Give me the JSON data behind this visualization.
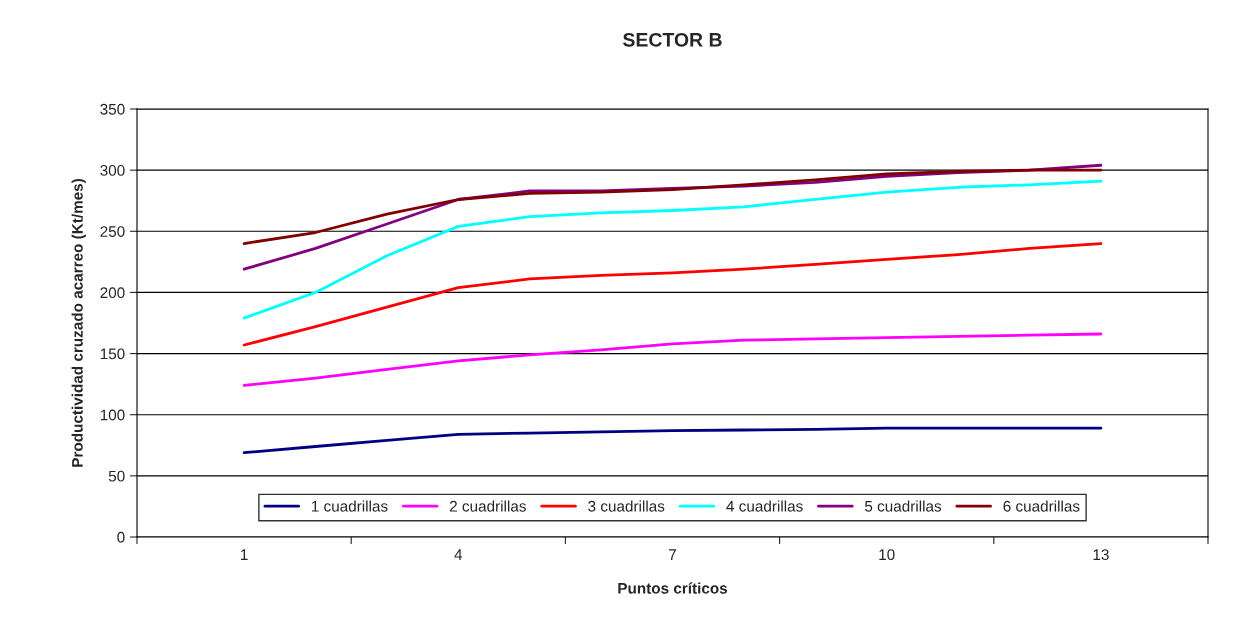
{
  "chart_data": {
    "type": "line",
    "title": "SECTOR B",
    "xlabel": "Puntos críticos",
    "ylabel": "Productividad cruzado acarreo (Kt/mes)",
    "x": [
      1,
      2,
      3,
      4,
      5,
      6,
      7,
      8,
      9,
      10,
      11,
      12,
      13
    ],
    "xlim": [
      -0.5,
      14.5
    ],
    "xticks": [
      {
        "value": -0.5,
        "label": null
      },
      1,
      {
        "value": 2.5,
        "label": null
      },
      4,
      {
        "value": 5.5,
        "label": null
      },
      7,
      {
        "value": 8.5,
        "label": null
      },
      10,
      {
        "value": 11.5,
        "label": null
      },
      13,
      {
        "value": 14.5,
        "label": null
      }
    ],
    "ylim": [
      0,
      350
    ],
    "yticks": [
      0,
      50,
      100,
      150,
      200,
      250,
      300,
      350
    ],
    "grid": "y",
    "legend": "bottom",
    "marker": "none",
    "line_style": "solid",
    "series": [
      {
        "name": "1 cuadrillas",
        "color": "#000080",
        "values": [
          69,
          74,
          79,
          84,
          85,
          86,
          87,
          87.5,
          88,
          89,
          89,
          89,
          89
        ]
      },
      {
        "name": "2 cuadrillas",
        "color": "#ff00ff",
        "values": [
          124,
          130,
          137,
          144,
          149,
          153,
          158,
          161,
          162,
          163,
          164,
          165,
          166
        ]
      },
      {
        "name": "3 cuadrillas",
        "color": "#ff0000",
        "values": [
          157,
          172,
          188,
          204,
          211,
          214,
          216,
          219,
          223,
          227,
          231,
          236,
          240
        ]
      },
      {
        "name": "4 cuadrillas",
        "color": "#00ffff",
        "values": [
          179,
          200,
          230,
          254,
          262,
          265,
          267,
          270,
          276,
          282,
          286,
          288,
          291
        ]
      },
      {
        "name": "5 cuadrillas",
        "color": "#800080",
        "values": [
          219,
          236,
          256,
          276,
          283,
          283,
          285,
          287,
          290,
          295,
          298,
          300,
          304
        ]
      },
      {
        "name": "6 cuadrillas",
        "color": "#800000",
        "values": [
          240,
          249,
          264,
          276,
          281,
          282,
          284,
          288,
          292,
          297,
          299,
          300,
          300
        ]
      }
    ]
  }
}
